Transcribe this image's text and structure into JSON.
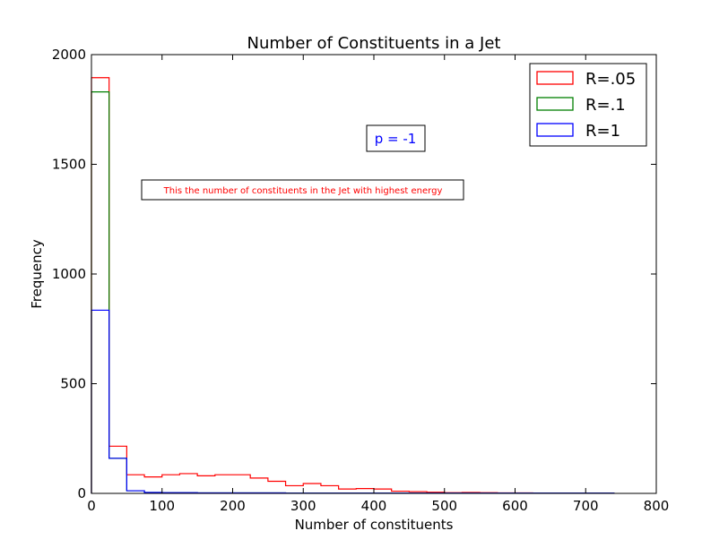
{
  "chart_data": {
    "type": "histogram-step",
    "title": "Number of Constituents in a Jet",
    "xlabel": "Number of constituents",
    "ylabel": "Frequency",
    "xlim": [
      0,
      800
    ],
    "ylim": [
      0,
      2000
    ],
    "xticks": [
      0,
      100,
      200,
      300,
      400,
      500,
      600,
      700,
      800
    ],
    "yticks": [
      0,
      500,
      1000,
      1500,
      2000
    ],
    "xtick_labels": [
      "0",
      "100",
      "200",
      "300",
      "400",
      "500",
      "600",
      "700",
      "800"
    ],
    "ytick_labels": [
      "0",
      "500",
      "1000",
      "1500",
      "2000"
    ],
    "bin_edges": [
      0,
      25,
      50,
      75,
      100,
      125,
      150,
      175,
      200,
      225,
      250,
      275,
      300,
      325,
      350,
      375,
      400,
      425,
      450,
      475,
      500,
      525,
      550,
      575,
      600,
      625,
      650,
      675,
      700,
      725,
      740
    ],
    "series": [
      {
        "name": "R=.05",
        "color": "#ff0000",
        "values": [
          1895,
          215,
          85,
          75,
          85,
          90,
          80,
          85,
          85,
          70,
          55,
          35,
          45,
          35,
          20,
          22,
          20,
          10,
          8,
          5,
          3,
          4,
          3,
          2,
          2,
          1,
          1,
          1,
          1,
          1
        ]
      },
      {
        "name": "R=.1",
        "color": "#008000",
        "values": [
          1830,
          160,
          12,
          4,
          3,
          3,
          2,
          2,
          2,
          2,
          2,
          1,
          1,
          1,
          1,
          1,
          1,
          1,
          1,
          1,
          1,
          1,
          1,
          1,
          1,
          1,
          1,
          1,
          1,
          1
        ]
      },
      {
        "name": "R=1",
        "color": "#0000ff",
        "values": [
          835,
          160,
          12,
          4,
          3,
          3,
          2,
          2,
          2,
          2,
          2,
          1,
          1,
          1,
          1,
          1,
          1,
          1,
          1,
          1,
          1,
          1,
          1,
          1,
          1,
          1,
          1,
          1,
          1,
          1
        ]
      }
    ],
    "legend_position": "top-right",
    "annotations": [
      {
        "text": "This the number of constituents in the Jet with highest energy",
        "color": "#ff0000"
      },
      {
        "text": "p = -1",
        "color": "#0000ff"
      }
    ]
  }
}
